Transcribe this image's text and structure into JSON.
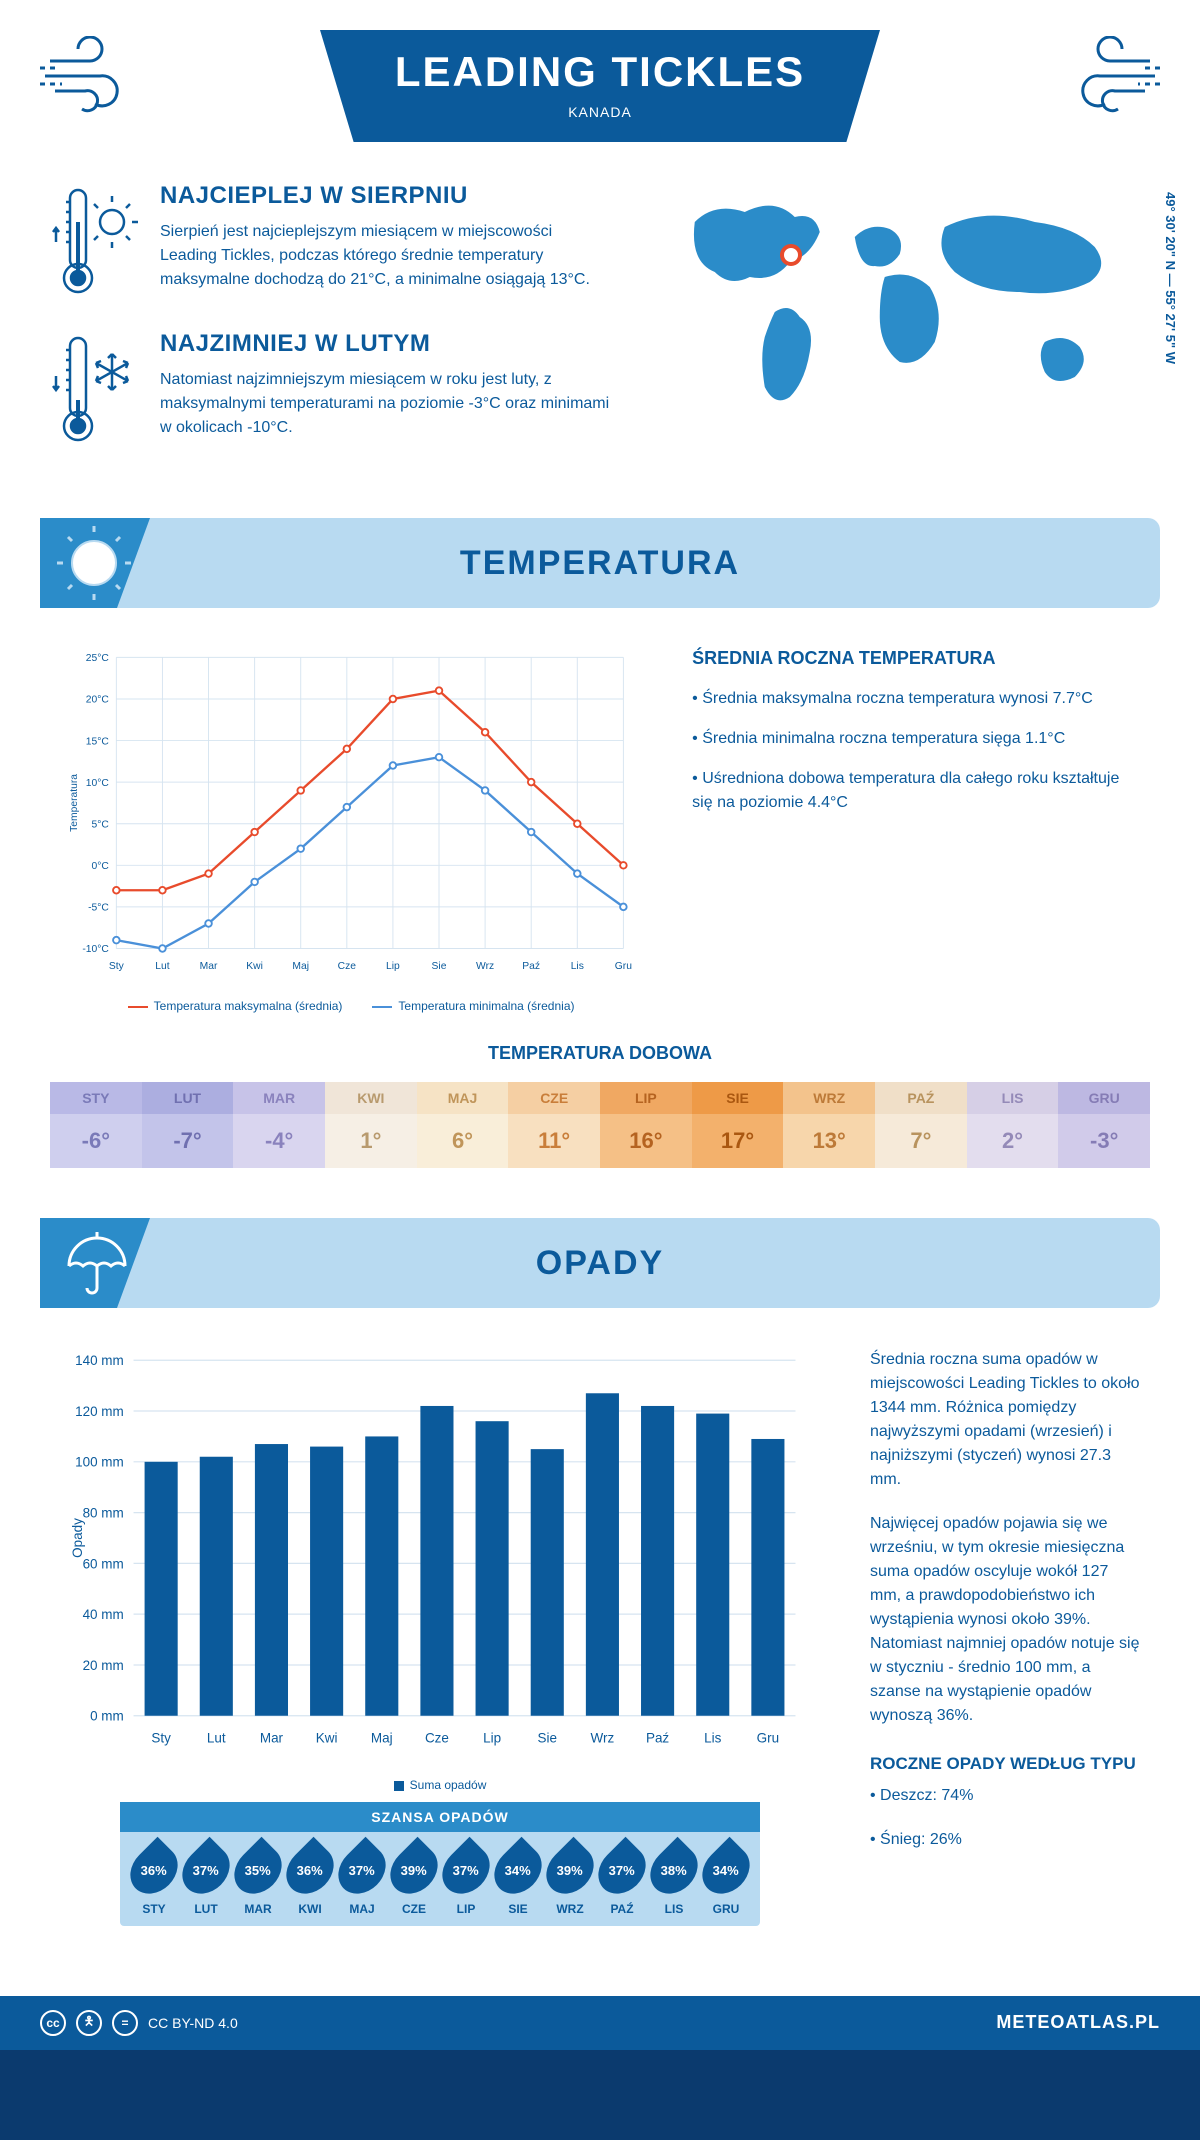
{
  "header": {
    "title": "LEADING TICKLES",
    "subtitle": "KANADA",
    "coords": "49° 30' 20\" N — 55° 27' 5\" W"
  },
  "facts": {
    "warm": {
      "title": "NAJCIEPLEJ W SIERPNIU",
      "text": "Sierpień jest najcieplejszym miesiącem w miejscowości Leading Tickles, podczas którego średnie temperatury maksymalne dochodzą do 21°C, a minimalne osiągają 13°C."
    },
    "cold": {
      "title": "NAJZIMNIEJ W LUTYM",
      "text": "Natomiast najzimniejszym miesiącem w roku jest luty, z maksymalnymi temperaturami na poziomie -3°C oraz minimami w okolicach -10°C."
    }
  },
  "temperature": {
    "section_title": "TEMPERATURA",
    "y_label": "Temperatura",
    "ylim": [
      -10,
      25
    ],
    "ytick_step": 5,
    "months": [
      "Sty",
      "Lut",
      "Mar",
      "Kwi",
      "Maj",
      "Cze",
      "Lip",
      "Sie",
      "Wrz",
      "Paź",
      "Lis",
      "Gru"
    ],
    "max_series": [
      -3,
      -3,
      -1,
      4,
      9,
      14,
      20,
      21,
      16,
      10,
      5,
      0
    ],
    "min_series": [
      -9,
      -10,
      -7,
      -2,
      2,
      7,
      12,
      13,
      9,
      4,
      -1,
      -5
    ],
    "max_color": "#e84b2c",
    "min_color": "#4a90d9",
    "grid_color": "#d6e4f0",
    "legend_max": "Temperatura maksymalna (średnia)",
    "legend_min": "Temperatura minimalna (średnia)",
    "info_title": "ŚREDNIA ROCZNA TEMPERATURA",
    "info1": "• Średnia maksymalna roczna temperatura wynosi 7.7°C",
    "info2": "• Średnia minimalna roczna temperatura sięga 1.1°C",
    "info3": "• Uśredniona dobowa temperatura dla całego roku kształtuje się na poziomie 4.4°C"
  },
  "dobowa": {
    "title": "TEMPERATURA DOBOWA",
    "months": [
      "STY",
      "LUT",
      "MAR",
      "KWI",
      "MAJ",
      "CZE",
      "LIP",
      "SIE",
      "WRZ",
      "PAŹ",
      "LIS",
      "GRU"
    ],
    "values": [
      "-6°",
      "-7°",
      "-4°",
      "1°",
      "6°",
      "11°",
      "16°",
      "17°",
      "13°",
      "7°",
      "2°",
      "-3°"
    ],
    "head_colors": [
      "#b9b9e6",
      "#acaee0",
      "#c7c3e8",
      "#f0e5d8",
      "#f6e3c5",
      "#f5cfa3",
      "#f0a862",
      "#ee9a47",
      "#f3c38c",
      "#f0dfc8",
      "#d6cfe6",
      "#bdb8e2"
    ],
    "body_colors": [
      "#cfcfee",
      "#c3c4ea",
      "#d9d5ef",
      "#f6efe5",
      "#f9eed9",
      "#f8e0c0",
      "#f5c086",
      "#f3b16c",
      "#f7d6ab",
      "#f6ead9",
      "#e3ddee",
      "#d1cbea"
    ],
    "text_colors": [
      "#7a7ab8",
      "#7070b0",
      "#8a82bd",
      "#b89a6e",
      "#c0955a",
      "#c97e3a",
      "#b56320",
      "#aa5710",
      "#bd7a38",
      "#b8935e",
      "#948ab8",
      "#857cb5"
    ]
  },
  "opady": {
    "section_title": "OPADY",
    "y_label": "Opady",
    "ylim": [
      0,
      140
    ],
    "ytick_step": 20,
    "months": [
      "Sty",
      "Lut",
      "Mar",
      "Kwi",
      "Maj",
      "Cze",
      "Lip",
      "Sie",
      "Wrz",
      "Paź",
      "Lis",
      "Gru"
    ],
    "values": [
      100,
      102,
      107,
      106,
      110,
      122,
      116,
      105,
      127,
      122,
      119,
      109
    ],
    "bar_color": "#0b5a9b",
    "grid_color": "#d6e4f0",
    "legend": "Suma opadów",
    "text1": "Średnia roczna suma opadów w miejscowości Leading Tickles to około 1344 mm. Różnica pomiędzy najwyższymi opadami (wrzesień) i najniższymi (styczeń) wynosi 27.3 mm.",
    "text2": "Najwięcej opadów pojawia się we wrześniu, w tym okresie miesięczna suma opadów oscyluje wokół 127 mm, a prawdopodobieństwo ich wystąpienia wynosi około 39%. Natomiast najmniej opadów notuje się w styczniu - średnio 100 mm, a szanse na wystąpienie opadów wynoszą 36%.",
    "type_title": "ROCZNE OPADY WEDŁUG TYPU",
    "type1": "• Deszcz: 74%",
    "type2": "• Śnieg: 26%"
  },
  "szansa": {
    "title": "SZANSA OPADÓW",
    "months": [
      "STY",
      "LUT",
      "MAR",
      "KWI",
      "MAJ",
      "CZE",
      "LIP",
      "SIE",
      "WRZ",
      "PAŹ",
      "LIS",
      "GRU"
    ],
    "values": [
      "36%",
      "37%",
      "35%",
      "36%",
      "37%",
      "39%",
      "37%",
      "34%",
      "39%",
      "37%",
      "38%",
      "34%"
    ]
  },
  "footer": {
    "license": "CC BY-ND 4.0",
    "site": "METEOATLAS.PL"
  }
}
